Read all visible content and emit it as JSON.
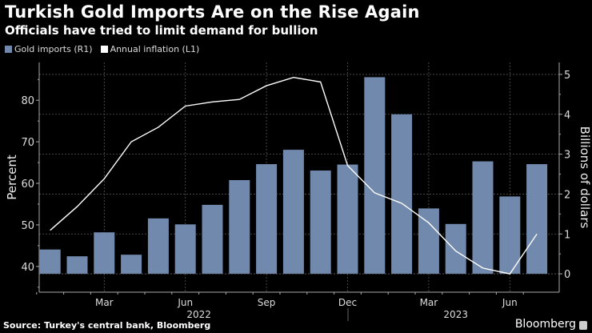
{
  "chart_data": {
    "type": "bar+line",
    "title": "Turkish Gold Imports Are on the Rise Again",
    "subtitle": "Officials have tried to limit demand for bullion",
    "source": "Source: Turkey's central bank, Bloomberg",
    "brand": "Bloomberg",
    "categories": [
      "Jan 2022",
      "Feb 2022",
      "Mar 2022",
      "Apr 2022",
      "May 2022",
      "Jun 2022",
      "Jul 2022",
      "Aug 2022",
      "Sep 2022",
      "Oct 2022",
      "Nov 2022",
      "Dec 2022",
      "Jan 2023",
      "Feb 2023",
      "Mar 2023",
      "Apr 2023",
      "May 2023",
      "Jun 2023",
      "Jul 2023"
    ],
    "x_tick_labels": [
      {
        "index": 2,
        "label": "Mar"
      },
      {
        "index": 5,
        "label": "Jun"
      },
      {
        "index": 8,
        "label": "Sep"
      },
      {
        "index": 11,
        "label": "Dec"
      },
      {
        "index": 14,
        "label": "Mar"
      },
      {
        "index": 17,
        "label": "Jun"
      }
    ],
    "year_labels": [
      {
        "label": "2022",
        "center_index": 5.5
      },
      {
        "label": "2023",
        "center_index": 15
      }
    ],
    "series": [
      {
        "name": "Gold imports (R1)",
        "type": "bar",
        "axis": "right",
        "color": "#7189ad",
        "values": [
          0.61,
          0.44,
          1.04,
          0.48,
          1.39,
          1.24,
          1.73,
          2.35,
          2.75,
          3.11,
          2.59,
          2.74,
          4.93,
          4.0,
          1.64,
          1.25,
          2.82,
          1.94,
          2.75
        ]
      },
      {
        "name": "Annual inflation (L1)",
        "type": "line",
        "axis": "left",
        "color": "#ffffff",
        "values": [
          48.7,
          54.4,
          61.1,
          70.0,
          73.5,
          78.6,
          79.6,
          80.2,
          83.5,
          85.5,
          84.4,
          64.3,
          57.7,
          55.2,
          50.5,
          43.7,
          39.6,
          38.2,
          47.8
        ]
      }
    ],
    "left_axis": {
      "label": "Percent",
      "ticks": [
        40,
        50,
        60,
        70,
        80
      ],
      "range": [
        33.8,
        89.1
      ]
    },
    "right_axis": {
      "label": "Billions of dollars",
      "ticks": [
        0,
        1,
        2,
        3,
        4,
        5
      ],
      "range": [
        -0.46,
        5.3
      ]
    },
    "grid": true,
    "legend_position": "top-left"
  }
}
